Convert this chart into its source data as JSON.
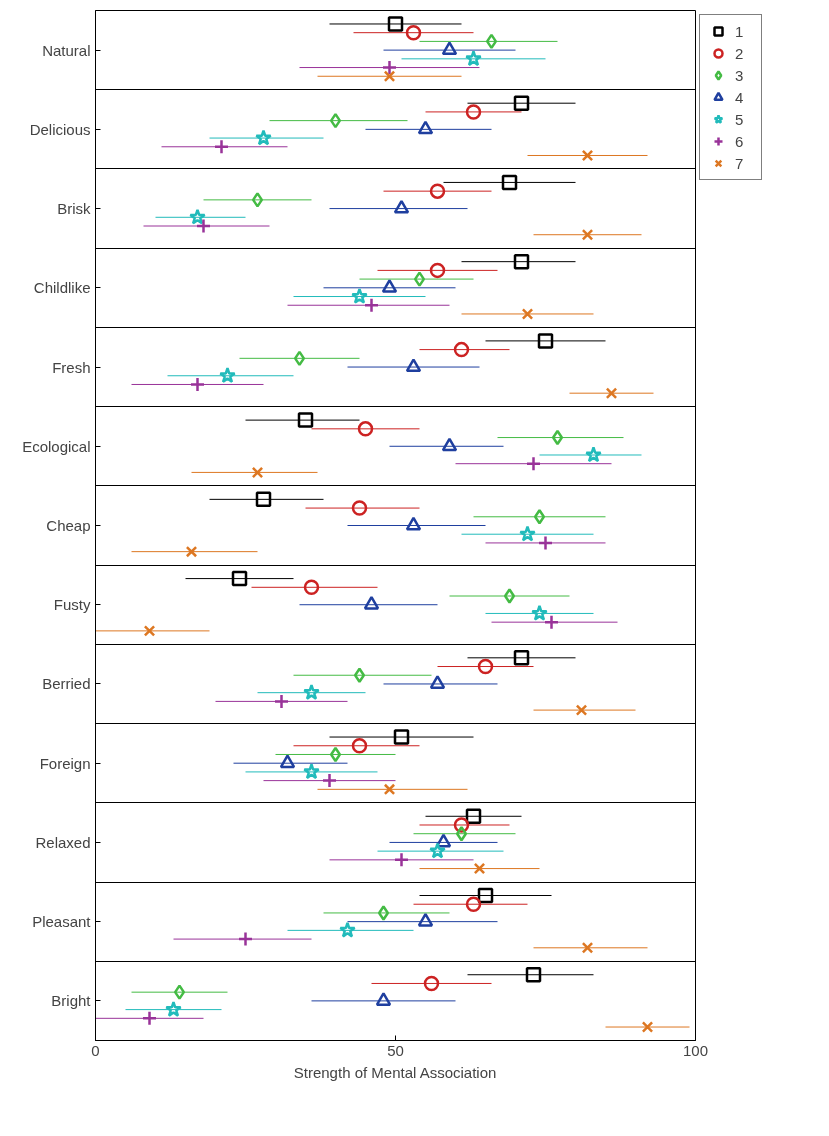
{
  "chart_data": {
    "type": "scatter",
    "orientation": "horizontal",
    "xlabel": "Strength of Mental Association",
    "categories": [
      "Natural",
      "Delicious",
      "Brisk",
      "Childlike",
      "Fresh",
      "Ecological",
      "Cheap",
      "Fusty",
      "Berried",
      "Foreign",
      "Relaxed",
      "Pleasant",
      "Bright"
    ],
    "xlim": [
      0,
      100
    ],
    "xticks": [
      0,
      50,
      100
    ],
    "grid": "y",
    "legend": "top right",
    "series": [
      {
        "name": "1",
        "color": "#000000",
        "marker": "square",
        "values": [
          50,
          71,
          69,
          71,
          75,
          35,
          28,
          24,
          71,
          51,
          63,
          65,
          73
        ],
        "errors": [
          [
            39,
            61
          ],
          [
            62,
            80
          ],
          [
            58,
            80
          ],
          [
            61,
            80
          ],
          [
            65,
            85
          ],
          [
            25,
            44
          ],
          [
            19,
            38
          ],
          [
            15,
            33
          ],
          [
            62,
            80
          ],
          [
            39,
            63
          ],
          [
            55,
            71
          ],
          [
            54,
            76
          ],
          [
            62,
            83
          ]
        ]
      },
      {
        "name": "2",
        "color": "#cc2222",
        "marker": "circle",
        "values": [
          53,
          63,
          57,
          57,
          61,
          45,
          44,
          36,
          65,
          44,
          61,
          63,
          56
        ],
        "errors": [
          [
            43,
            63
          ],
          [
            55,
            71
          ],
          [
            48,
            66
          ],
          [
            47,
            67
          ],
          [
            54,
            69
          ],
          [
            36,
            54
          ],
          [
            35,
            54
          ],
          [
            26,
            47
          ],
          [
            57,
            73
          ],
          [
            33,
            54
          ],
          [
            54,
            69
          ],
          [
            53,
            72
          ],
          [
            46,
            66
          ]
        ]
      },
      {
        "name": "3",
        "color": "#44bb44",
        "marker": "diamond",
        "values": [
          66,
          40,
          27,
          54,
          34,
          77,
          74,
          69,
          44,
          40,
          61,
          48,
          14
        ],
        "errors": [
          [
            54,
            77
          ],
          [
            29,
            52
          ],
          [
            18,
            36
          ],
          [
            44,
            63
          ],
          [
            24,
            44
          ],
          [
            67,
            88
          ],
          [
            63,
            85
          ],
          [
            59,
            79
          ],
          [
            33,
            56
          ],
          [
            30,
            50
          ],
          [
            53,
            70
          ],
          [
            38,
            59
          ],
          [
            6,
            22
          ]
        ]
      },
      {
        "name": "4",
        "color": "#1f3f9f",
        "marker": "triangle",
        "values": [
          59,
          55,
          51,
          49,
          53,
          59,
          53,
          46,
          57,
          32,
          58,
          55,
          48
        ],
        "errors": [
          [
            48,
            70
          ],
          [
            45,
            66
          ],
          [
            39,
            62
          ],
          [
            38,
            60
          ],
          [
            42,
            64
          ],
          [
            49,
            68
          ],
          [
            42,
            65
          ],
          [
            34,
            57
          ],
          [
            48,
            67
          ],
          [
            23,
            42
          ],
          [
            49,
            67
          ],
          [
            42,
            67
          ],
          [
            36,
            60
          ]
        ]
      },
      {
        "name": "5",
        "color": "#22bbbb",
        "marker": "star",
        "values": [
          63,
          28,
          17,
          44,
          22,
          83,
          72,
          74,
          36,
          36,
          57,
          42,
          13
        ],
        "errors": [
          [
            51,
            75
          ],
          [
            19,
            38
          ],
          [
            10,
            25
          ],
          [
            33,
            55
          ],
          [
            12,
            33
          ],
          [
            74,
            91
          ],
          [
            61,
            83
          ],
          [
            65,
            83
          ],
          [
            27,
            45
          ],
          [
            25,
            47
          ],
          [
            47,
            68
          ],
          [
            32,
            53
          ],
          [
            5,
            21
          ]
        ]
      },
      {
        "name": "6",
        "color": "#993399",
        "marker": "cross",
        "values": [
          49,
          21,
          18,
          46,
          17,
          73,
          75,
          76,
          31,
          39,
          51,
          25,
          9
        ],
        "errors": [
          [
            34,
            64
          ],
          [
            11,
            32
          ],
          [
            8,
            29
          ],
          [
            32,
            59
          ],
          [
            6,
            28
          ],
          [
            60,
            86
          ],
          [
            65,
            85
          ],
          [
            66,
            87
          ],
          [
            20,
            42
          ],
          [
            28,
            50
          ],
          [
            39,
            63
          ],
          [
            13,
            36
          ],
          [
            0,
            18
          ]
        ]
      },
      {
        "name": "7",
        "color": "#dd7722",
        "marker": "x",
        "values": [
          49,
          82,
          82,
          72,
          86,
          27,
          16,
          9,
          81,
          49,
          64,
          82,
          92
        ],
        "errors": [
          [
            37,
            61
          ],
          [
            72,
            92
          ],
          [
            73,
            91
          ],
          [
            61,
            83
          ],
          [
            79,
            93
          ],
          [
            16,
            37
          ],
          [
            6,
            27
          ],
          [
            0,
            19
          ],
          [
            73,
            90
          ],
          [
            37,
            62
          ],
          [
            54,
            74
          ],
          [
            73,
            92
          ],
          [
            85,
            99
          ]
        ]
      }
    ]
  }
}
